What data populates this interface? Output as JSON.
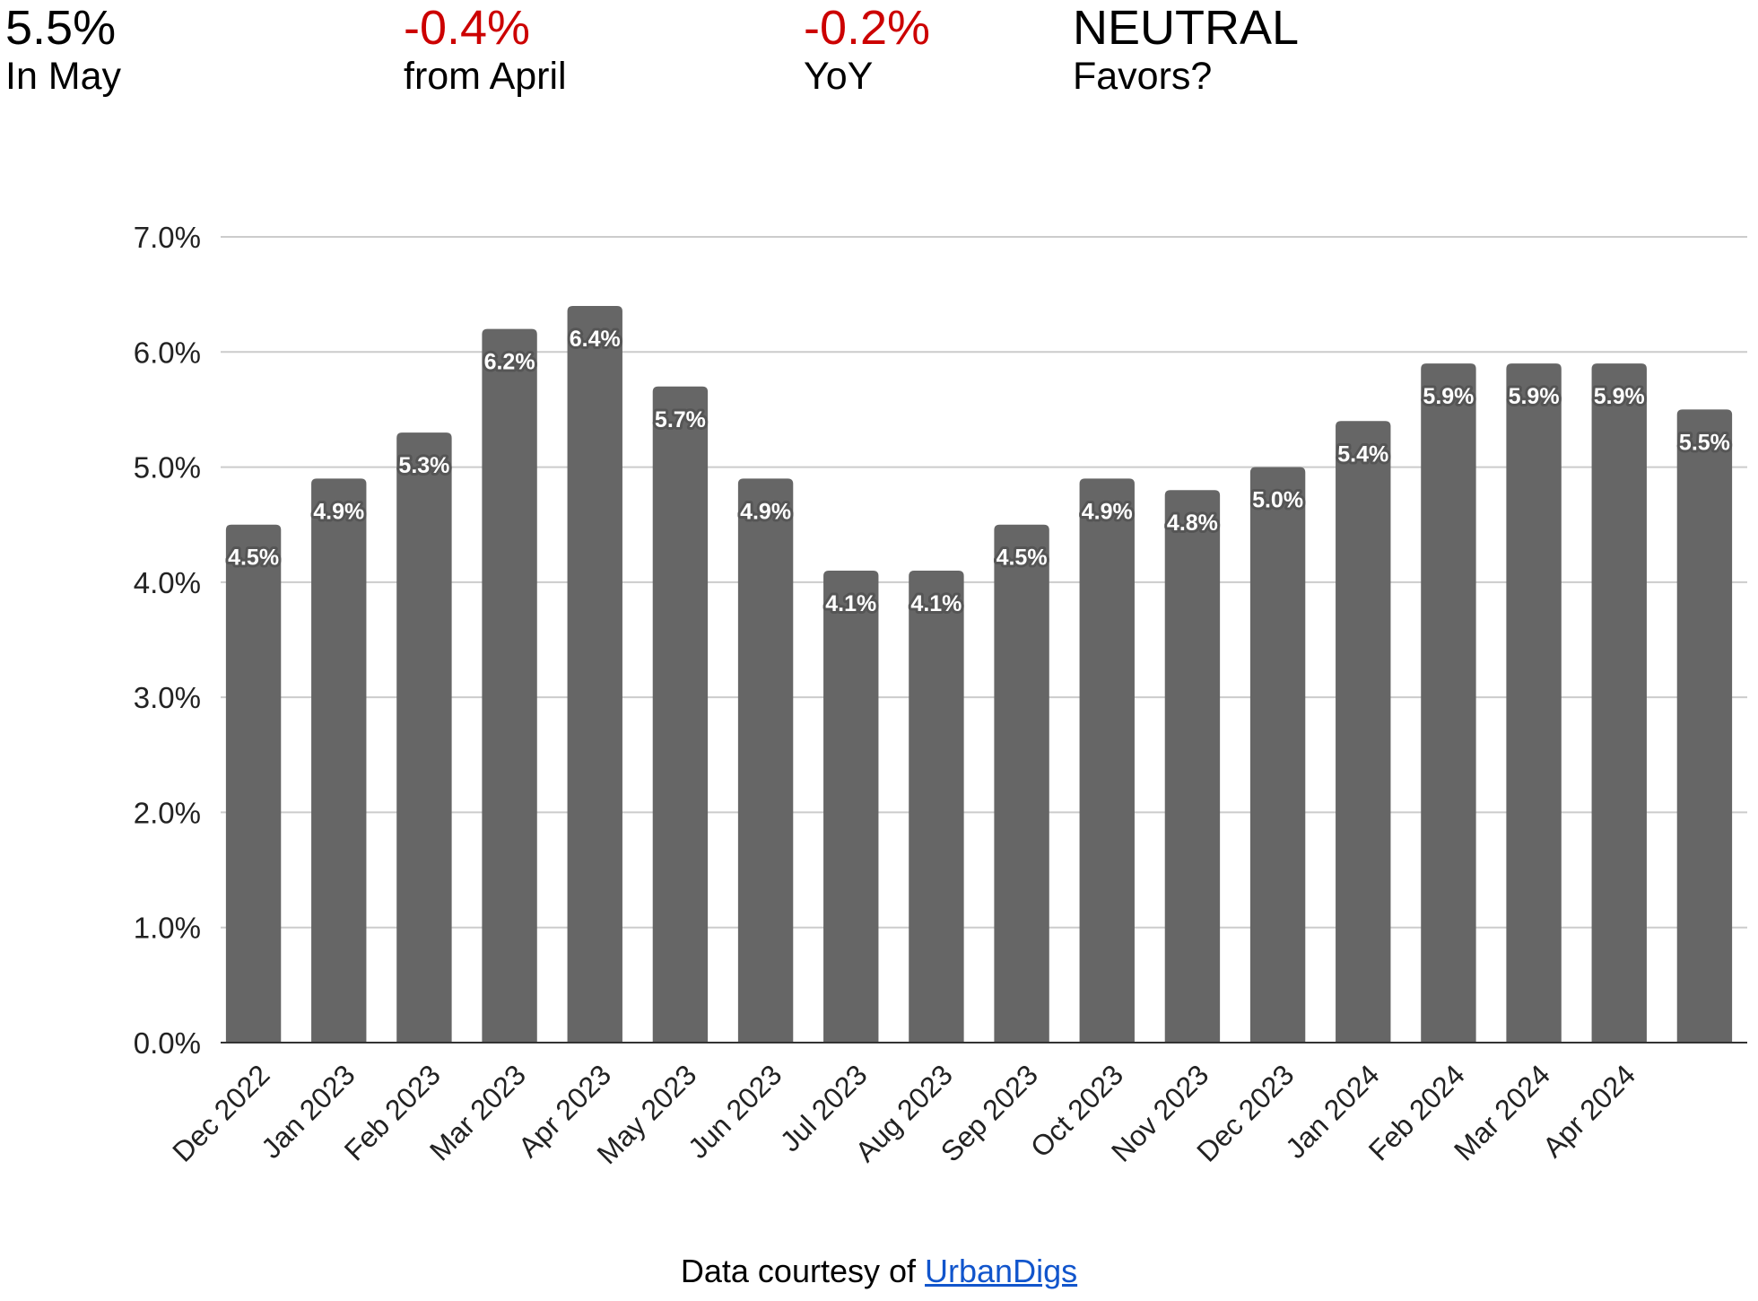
{
  "header": {
    "stats": [
      {
        "value": "5.5%",
        "caption": "In May",
        "color": "#000000"
      },
      {
        "value": "-0.4%",
        "caption": "from April",
        "color": "#cc0000"
      },
      {
        "value": "-0.2%",
        "caption": "YoY",
        "color": "#cc0000"
      },
      {
        "value": "NEUTRAL",
        "caption": "Favors?",
        "color": "#000000"
      }
    ]
  },
  "chart_data": {
    "type": "bar",
    "title": "",
    "xlabel": "",
    "ylabel": "",
    "ylim": [
      0,
      7
    ],
    "y_ticks": [
      "0.0%",
      "1.0%",
      "2.0%",
      "3.0%",
      "4.0%",
      "5.0%",
      "6.0%",
      "7.0%"
    ],
    "grid": true,
    "legend": "none",
    "bar_color": "#666666",
    "categories": [
      "Dec 2022",
      "Jan 2023",
      "Feb 2023",
      "Mar 2023",
      "Apr 2023",
      "May 2023",
      "Jun 2023",
      "Jul 2023",
      "Aug 2023",
      "Sep 2023",
      "Oct 2023",
      "Nov 2023",
      "Dec 2023",
      "Jan 2024",
      "Feb 2024",
      "Mar 2024",
      "Apr 2024",
      ""
    ],
    "values": [
      4.5,
      4.9,
      5.3,
      6.2,
      6.4,
      5.7,
      4.9,
      4.1,
      4.1,
      4.5,
      4.9,
      4.8,
      5.0,
      5.4,
      5.9,
      5.9,
      5.9,
      5.5
    ],
    "data_labels": [
      "4.5%",
      "4.9%",
      "5.3%",
      "6.2%",
      "6.4%",
      "5.7%",
      "4.9%",
      "4.1%",
      "4.1%",
      "4.5%",
      "4.9%",
      "4.8%",
      "5.0%",
      "5.4%",
      "5.9%",
      "5.9%",
      "5.9%",
      "5.5%"
    ]
  },
  "footer": {
    "prefix": "Data courtesy of ",
    "link_text": "UrbanDigs"
  }
}
